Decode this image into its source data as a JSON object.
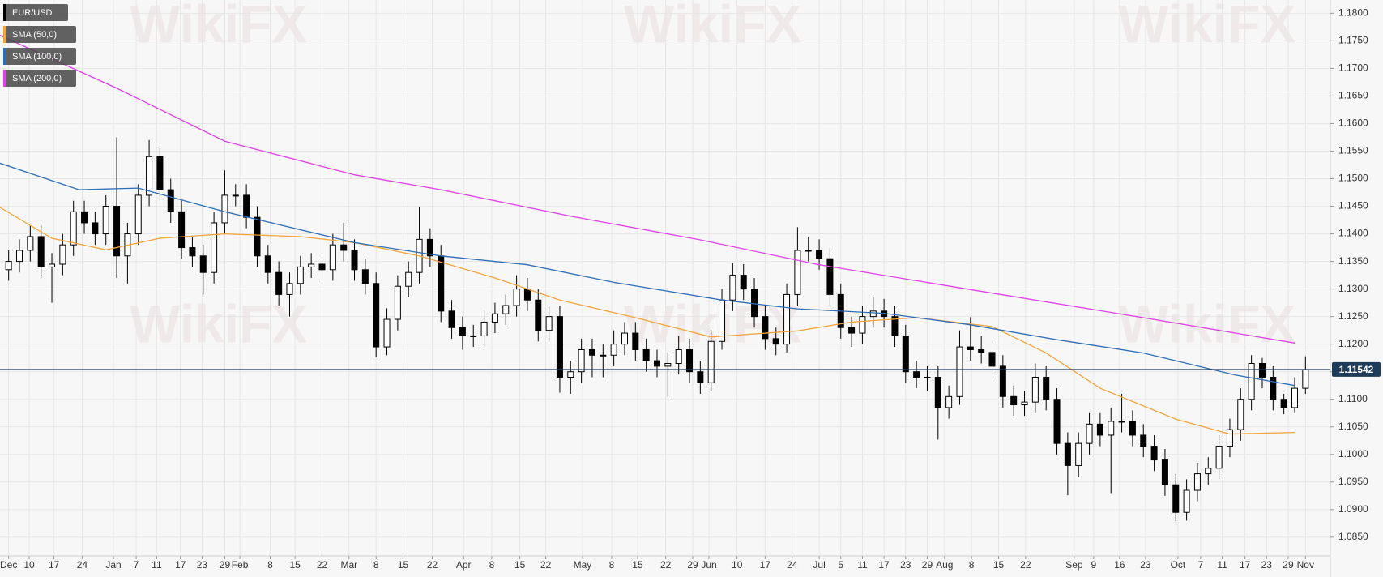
{
  "chart_data": {
    "type": "candlestick",
    "watermark": "WikiFX",
    "last_price": 1.11542,
    "xlim": [
      -0.8,
      122.3
    ],
    "ylim": [
      1.0816,
      1.1824
    ],
    "grid": true,
    "legend": "top-left",
    "xticks": [
      {
        "value": 0,
        "label": "Dec"
      },
      {
        "value": 1.9,
        "label": "10"
      },
      {
        "value": 4.2,
        "label": "17"
      },
      {
        "value": 6.8,
        "label": "24"
      },
      {
        "value": 9.7,
        "label": "Jan"
      },
      {
        "value": 11.8,
        "label": "7"
      },
      {
        "value": 13.7,
        "label": "11"
      },
      {
        "value": 15.9,
        "label": "17"
      },
      {
        "value": 17.9,
        "label": "23"
      },
      {
        "value": 20,
        "label": "29"
      },
      {
        "value": 21.4,
        "label": "Feb"
      },
      {
        "value": 24.2,
        "label": "8"
      },
      {
        "value": 26.5,
        "label": "15"
      },
      {
        "value": 29,
        "label": "22"
      },
      {
        "value": 31.5,
        "label": "Mar"
      },
      {
        "value": 34,
        "label": "8"
      },
      {
        "value": 36.5,
        "label": "15"
      },
      {
        "value": 39.2,
        "label": "22"
      },
      {
        "value": 42.1,
        "label": "Apr"
      },
      {
        "value": 44.7,
        "label": "8"
      },
      {
        "value": 47.3,
        "label": "15"
      },
      {
        "value": 49.7,
        "label": "22"
      },
      {
        "value": 53.1,
        "label": "May"
      },
      {
        "value": 55.8,
        "label": "8"
      },
      {
        "value": 58.2,
        "label": "15"
      },
      {
        "value": 60.8,
        "label": "22"
      },
      {
        "value": 63.3,
        "label": "29"
      },
      {
        "value": 64.8,
        "label": "Jun"
      },
      {
        "value": 67.4,
        "label": "10"
      },
      {
        "value": 70,
        "label": "17"
      },
      {
        "value": 72.5,
        "label": "24"
      },
      {
        "value": 75,
        "label": "Jul"
      },
      {
        "value": 77,
        "label": "5"
      },
      {
        "value": 79,
        "label": "11"
      },
      {
        "value": 81,
        "label": "17"
      },
      {
        "value": 83,
        "label": "23"
      },
      {
        "value": 85,
        "label": "29"
      },
      {
        "value": 86.6,
        "label": "Aug"
      },
      {
        "value": 89.1,
        "label": "8"
      },
      {
        "value": 91.6,
        "label": "15"
      },
      {
        "value": 94.1,
        "label": "22"
      },
      {
        "value": 98.6,
        "label": "Sep"
      },
      {
        "value": 100.4,
        "label": "9"
      },
      {
        "value": 102.8,
        "label": "16"
      },
      {
        "value": 105.2,
        "label": "23"
      },
      {
        "value": 108.2,
        "label": "Oct"
      },
      {
        "value": 110.3,
        "label": "7"
      },
      {
        "value": 112.3,
        "label": "11"
      },
      {
        "value": 114.4,
        "label": "17"
      },
      {
        "value": 116.4,
        "label": "23"
      },
      {
        "value": 118.4,
        "label": "29"
      },
      {
        "value": 120,
        "label": "Nov"
      }
    ],
    "yticks": [
      {
        "value": 1.085,
        "label": "1.0850"
      },
      {
        "value": 1.09,
        "label": "1.0900"
      },
      {
        "value": 1.095,
        "label": "1.0950"
      },
      {
        "value": 1.1,
        "label": "1.1000"
      },
      {
        "value": 1.105,
        "label": "1.1050"
      },
      {
        "value": 1.11,
        "label": "1.1100"
      },
      {
        "value": 1.115,
        "label": "1.1150"
      },
      {
        "value": 1.12,
        "label": "1.1200"
      },
      {
        "value": 1.125,
        "label": "1.1250"
      },
      {
        "value": 1.13,
        "label": "1.1300"
      },
      {
        "value": 1.135,
        "label": "1.1350"
      },
      {
        "value": 1.14,
        "label": "1.1400"
      },
      {
        "value": 1.145,
        "label": "1.1450"
      },
      {
        "value": 1.15,
        "label": "1.1500"
      },
      {
        "value": 1.155,
        "label": "1.1550"
      },
      {
        "value": 1.16,
        "label": "1.1600"
      },
      {
        "value": 1.165,
        "label": "1.1650"
      },
      {
        "value": 1.17,
        "label": "1.1700"
      },
      {
        "value": 1.175,
        "label": "1.1750"
      },
      {
        "value": 1.18,
        "label": "1.1800"
      }
    ],
    "series": [
      {
        "name": "EUR/USD",
        "color": "#000000",
        "up_color": "#ffffff",
        "open": [
          1.1335,
          1.135,
          1.137,
          1.1395,
          1.134,
          1.1345,
          1.138,
          1.144,
          1.142,
          1.14,
          1.145,
          1.136,
          1.14,
          1.147,
          1.154,
          1.148,
          1.144,
          1.1375,
          1.136,
          1.133,
          1.142,
          1.147,
          1.147,
          1.143,
          1.136,
          1.133,
          1.129,
          1.131,
          1.134,
          1.1345,
          1.1335,
          1.138,
          1.137,
          1.1335,
          1.131,
          1.1195,
          1.1245,
          1.1305,
          1.133,
          1.139,
          1.136,
          1.126,
          1.123,
          1.1215,
          1.1215,
          1.124,
          1.1255,
          1.127,
          1.13,
          1.128,
          1.1225,
          1.125,
          1.114,
          1.115,
          1.119,
          1.118,
          1.118,
          1.12,
          1.122,
          1.119,
          1.117,
          1.116,
          1.1165,
          1.119,
          1.115,
          1.113,
          1.1205,
          1.128,
          1.1325,
          1.13,
          1.125,
          1.121,
          1.12,
          1.129,
          1.137,
          1.137,
          1.1355,
          1.129,
          1.123,
          1.122,
          1.125,
          1.126,
          1.125,
          1.1215,
          1.115,
          1.114,
          1.114,
          1.1085,
          1.1105,
          1.1195,
          1.119,
          1.1185,
          1.116,
          1.1105,
          1.109,
          1.1095,
          1.114,
          1.11,
          1.102,
          1.098,
          1.102,
          1.1055,
          1.1035,
          1.106,
          1.106,
          1.1035,
          1.1015,
          1.099,
          1.0945,
          1.0895,
          1.0935,
          1.0965,
          1.0975,
          1.1015,
          1.1045,
          1.11,
          1.1165,
          1.114,
          1.11,
          1.1085,
          1.112
        ],
        "high": [
          1.137,
          1.139,
          1.1415,
          1.1415,
          1.1365,
          1.14,
          1.146,
          1.146,
          1.144,
          1.147,
          1.1575,
          1.142,
          1.149,
          1.157,
          1.156,
          1.15,
          1.146,
          1.1395,
          1.138,
          1.144,
          1.1515,
          1.149,
          1.149,
          1.145,
          1.138,
          1.135,
          1.133,
          1.136,
          1.1365,
          1.1365,
          1.14,
          1.142,
          1.139,
          1.1355,
          1.133,
          1.1265,
          1.1325,
          1.135,
          1.1448,
          1.141,
          1.138,
          1.128,
          1.125,
          1.1235,
          1.126,
          1.1275,
          1.129,
          1.1325,
          1.132,
          1.13,
          1.127,
          1.127,
          1.117,
          1.121,
          1.121,
          1.12,
          1.1225,
          1.124,
          1.124,
          1.121,
          1.119,
          1.1185,
          1.1215,
          1.121,
          1.117,
          1.1225,
          1.13,
          1.1347,
          1.1345,
          1.132,
          1.127,
          1.123,
          1.131,
          1.1412,
          1.1395,
          1.139,
          1.1375,
          1.131,
          1.125,
          1.127,
          1.1285,
          1.1282,
          1.127,
          1.1235,
          1.117,
          1.116,
          1.116,
          1.1125,
          1.1225,
          1.1249,
          1.1215,
          1.1205,
          1.118,
          1.1125,
          1.1115,
          1.1165,
          1.116,
          1.112,
          1.104,
          1.104,
          1.1075,
          1.1075,
          1.1085,
          1.111,
          1.108,
          1.1055,
          1.1035,
          1.101,
          1.0965,
          1.0955,
          1.0985,
          1.0995,
          1.1035,
          1.1065,
          1.112,
          1.118,
          1.1175,
          1.116,
          1.111,
          1.114,
          1.1178
        ],
        "low": [
          1.1315,
          1.133,
          1.135,
          1.132,
          1.1275,
          1.1325,
          1.136,
          1.14,
          1.138,
          1.138,
          1.132,
          1.131,
          1.138,
          1.145,
          1.146,
          1.142,
          1.1355,
          1.134,
          1.129,
          1.131,
          1.14,
          1.145,
          1.141,
          1.134,
          1.131,
          1.127,
          1.125,
          1.129,
          1.132,
          1.1315,
          1.1315,
          1.135,
          1.1315,
          1.129,
          1.1176,
          1.118,
          1.1225,
          1.1285,
          1.131,
          1.134,
          1.124,
          1.121,
          1.119,
          1.1195,
          1.1195,
          1.122,
          1.1235,
          1.125,
          1.126,
          1.1205,
          1.1205,
          1.1112,
          1.111,
          1.113,
          1.114,
          1.114,
          1.116,
          1.118,
          1.117,
          1.115,
          1.114,
          1.1105,
          1.1145,
          1.113,
          1.111,
          1.1115,
          1.119,
          1.126,
          1.128,
          1.123,
          1.119,
          1.118,
          1.1185,
          1.127,
          1.135,
          1.1335,
          1.127,
          1.121,
          1.1195,
          1.12,
          1.123,
          1.123,
          1.1195,
          1.113,
          1.112,
          1.1115,
          1.1027,
          1.1065,
          1.109,
          1.117,
          1.1165,
          1.114,
          1.1085,
          1.107,
          1.107,
          1.1075,
          1.108,
          1.1,
          1.0926,
          1.096,
          1.1,
          1.1015,
          1.093,
          1.104,
          1.1015,
          1.0995,
          1.097,
          1.0925,
          1.0879,
          1.088,
          1.0915,
          1.0945,
          1.0955,
          1.0995,
          1.1025,
          1.108,
          1.112,
          1.108,
          1.1073,
          1.1075,
          1.111
        ],
        "close": [
          1.135,
          1.137,
          1.1395,
          1.134,
          1.1345,
          1.138,
          1.144,
          1.142,
          1.14,
          1.145,
          1.136,
          1.14,
          1.147,
          1.154,
          1.148,
          1.144,
          1.1375,
          1.136,
          1.133,
          1.142,
          1.147,
          1.147,
          1.143,
          1.136,
          1.133,
          1.129,
          1.131,
          1.134,
          1.1345,
          1.1335,
          1.138,
          1.137,
          1.1335,
          1.131,
          1.1195,
          1.1245,
          1.1305,
          1.133,
          1.139,
          1.136,
          1.126,
          1.123,
          1.1215,
          1.1215,
          1.124,
          1.1255,
          1.127,
          1.13,
          1.128,
          1.1225,
          1.125,
          1.114,
          1.115,
          1.119,
          1.118,
          1.118,
          1.12,
          1.122,
          1.119,
          1.117,
          1.116,
          1.1165,
          1.119,
          1.115,
          1.113,
          1.1205,
          1.128,
          1.1325,
          1.13,
          1.125,
          1.121,
          1.12,
          1.129,
          1.137,
          1.137,
          1.1355,
          1.129,
          1.123,
          1.122,
          1.125,
          1.126,
          1.125,
          1.1215,
          1.115,
          1.114,
          1.114,
          1.1085,
          1.1105,
          1.1195,
          1.119,
          1.1185,
          1.116,
          1.1105,
          1.109,
          1.1095,
          1.114,
          1.11,
          1.102,
          1.098,
          1.102,
          1.1055,
          1.1035,
          1.106,
          1.106,
          1.1035,
          1.1015,
          1.099,
          1.0945,
          1.0895,
          1.0935,
          1.0965,
          1.0975,
          1.1015,
          1.1045,
          1.11,
          1.1165,
          1.114,
          1.11,
          1.1085,
          1.112,
          1.1154
        ]
      },
      {
        "name": "SMA (50,0)",
        "type": "line",
        "color": "#f2a43a",
        "x": [
          -0.8,
          4,
          9,
          14,
          20,
          27,
          32,
          38,
          45,
          51,
          58,
          65,
          73,
          78,
          84,
          91,
          96,
          101,
          108,
          113,
          119
        ],
        "values": [
          1.1448,
          1.1392,
          1.1371,
          1.1392,
          1.14,
          1.1395,
          1.1384,
          1.136,
          1.132,
          1.128,
          1.1248,
          1.1213,
          1.1224,
          1.124,
          1.1248,
          1.1232,
          1.1184,
          1.112,
          1.1064,
          1.1037,
          1.104
        ]
      },
      {
        "name": "SMA (100,0)",
        "type": "line",
        "color": "#2e6db4",
        "x": [
          -0.8,
          6.5,
          12,
          20,
          32,
          40,
          48,
          56,
          66,
          73,
          81,
          89,
          97,
          105,
          113.5,
          119
        ],
        "values": [
          1.1528,
          1.148,
          1.1483,
          1.144,
          1.1384,
          1.136,
          1.1344,
          1.1312,
          1.128,
          1.1264,
          1.1256,
          1.1235,
          1.1208,
          1.1184,
          1.1144,
          1.1125
        ]
      },
      {
        "name": "SMA (200,0)",
        "type": "line",
        "color": "#e040e8",
        "x": [
          -0.8,
          10,
          20,
          32,
          40,
          52,
          64,
          75,
          89,
          105,
          119
        ],
        "values": [
          1.176,
          1.1664,
          1.1568,
          1.1507,
          1.148,
          1.1432,
          1.1389,
          1.1344,
          1.1299,
          1.1248,
          1.1202
        ]
      }
    ]
  }
}
